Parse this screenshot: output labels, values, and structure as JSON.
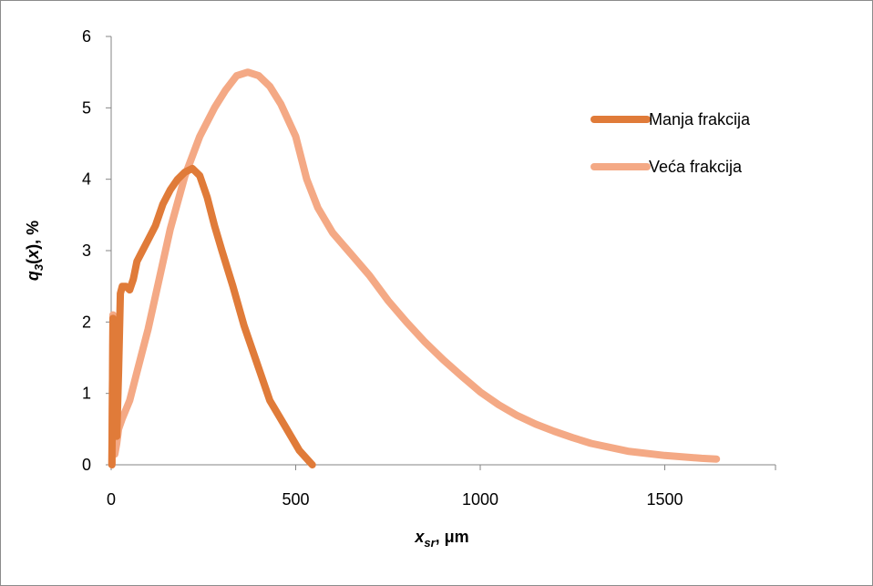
{
  "chart_data": {
    "type": "line",
    "xlabel": {
      "main": "x",
      "sub": "sr",
      "suffix": ", μm"
    },
    "ylabel": {
      "main": "q",
      "sub": "3",
      "paren_open": "(",
      "var": "x",
      "paren_close": "), %"
    },
    "xlim": [
      0,
      1800
    ],
    "ylim": [
      0,
      6
    ],
    "x_ticks": [
      "0",
      "500",
      "1000",
      "1500"
    ],
    "x_tick_values": [
      0,
      500,
      1000,
      1500
    ],
    "y_ticks": [
      "0",
      "1",
      "2",
      "3",
      "4",
      "5",
      "6"
    ],
    "y_tick_values": [
      0,
      1,
      2,
      3,
      4,
      5,
      6
    ],
    "grid": false,
    "legend_position": "right",
    "series": [
      {
        "name": "Manja frakcija",
        "color": "#E07B39",
        "x": [
          2,
          5,
          10,
          15,
          20,
          25,
          30,
          40,
          50,
          60,
          70,
          80,
          100,
          120,
          140,
          160,
          180,
          200,
          220,
          240,
          260,
          280,
          300,
          330,
          360,
          400,
          430,
          470,
          510,
          545
        ],
        "y": [
          0.0,
          2.05,
          0.6,
          0.4,
          1.3,
          2.4,
          2.5,
          2.5,
          2.45,
          2.6,
          2.85,
          2.95,
          3.15,
          3.35,
          3.65,
          3.85,
          4.0,
          4.1,
          4.15,
          4.05,
          3.75,
          3.35,
          3.0,
          2.5,
          1.95,
          1.35,
          0.9,
          0.55,
          0.2,
          0.0
        ]
      },
      {
        "name": "Veća frakcija",
        "color": "#F4A985",
        "x": [
          2,
          5,
          10,
          15,
          20,
          30,
          50,
          70,
          100,
          130,
          160,
          200,
          240,
          280,
          310,
          340,
          370,
          400,
          430,
          460,
          500,
          530,
          560,
          600,
          650,
          700,
          750,
          800,
          850,
          900,
          950,
          1000,
          1050,
          1100,
          1150,
          1200,
          1250,
          1300,
          1400,
          1500,
          1600,
          1640
        ],
        "y": [
          0.0,
          2.1,
          0.15,
          0.3,
          0.5,
          0.65,
          0.9,
          1.3,
          1.9,
          2.6,
          3.3,
          4.05,
          4.6,
          5.0,
          5.25,
          5.45,
          5.5,
          5.45,
          5.3,
          5.05,
          4.6,
          4.0,
          3.6,
          3.25,
          2.95,
          2.65,
          2.3,
          2.0,
          1.72,
          1.47,
          1.24,
          1.02,
          0.84,
          0.69,
          0.57,
          0.47,
          0.38,
          0.3,
          0.19,
          0.13,
          0.09,
          0.08
        ]
      }
    ]
  }
}
